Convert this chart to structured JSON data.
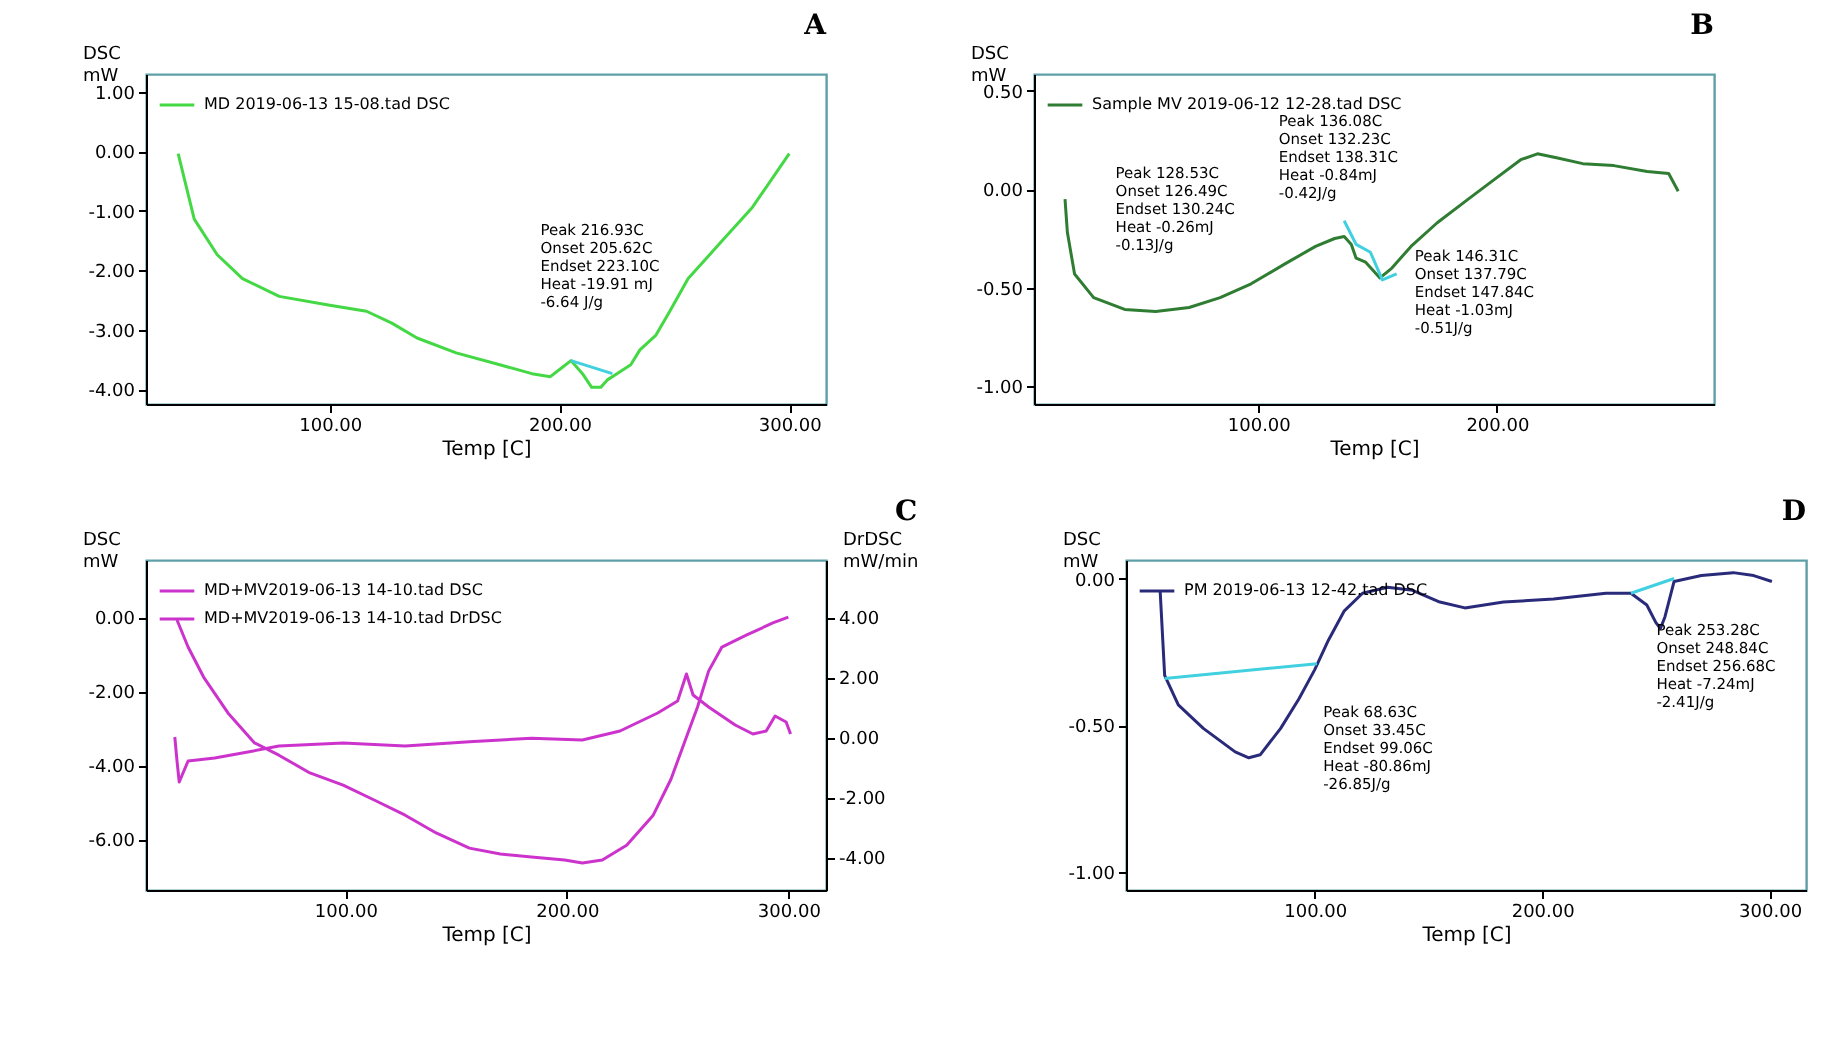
{
  "chart_data": [
    {
      "type": "line",
      "title": "A",
      "xlabel": "Temp [C]",
      "ylabel": "DSC\nmW",
      "xlim": [
        20,
        316
      ],
      "ylim": [
        -4.25,
        1.3
      ],
      "xticks": [
        {
          "value": 100,
          "label": "100.00"
        },
        {
          "value": 200,
          "label": "200.00"
        },
        {
          "value": 300,
          "label": "300.00"
        }
      ],
      "yticks": [
        {
          "value": 1,
          "label": "1.00"
        },
        {
          "value": 0,
          "label": "0.00"
        },
        {
          "value": -1,
          "label": "-1.00"
        },
        {
          "value": -2,
          "label": "-2.00"
        },
        {
          "value": -3,
          "label": "-3.00"
        },
        {
          "value": -4,
          "label": "-4.00"
        }
      ],
      "grid": false,
      "legend": "top left",
      "annotations": [
        "Peak 216.93C\nOnset 205.62C\nEndset 223.10C\nHeat -19.91 mJ\n-6.64 J/g"
      ],
      "series": [
        {
          "name": "MD 2019-06-13 15-08.tad  DSC",
          "color": "#44d844",
          "x": [
            34,
            41,
            51,
            62,
            78,
            100,
            116,
            127,
            138,
            155,
            174,
            188,
            196,
            201,
            205,
            210,
            214,
            218,
            221,
            225,
            231,
            235,
            242,
            248,
            256,
            270,
            284,
            300
          ],
          "values": [
            -0.04,
            -1.14,
            -1.74,
            -2.14,
            -2.44,
            -2.59,
            -2.69,
            -2.89,
            -3.14,
            -3.39,
            -3.59,
            -3.74,
            -3.79,
            -3.64,
            -3.52,
            -3.74,
            -3.97,
            -3.97,
            -3.84,
            -3.74,
            -3.59,
            -3.34,
            -3.09,
            -2.69,
            -2.14,
            -1.54,
            -0.94,
            -0.04
          ]
        },
        {
          "color": "#40d0e0",
          "x": [
            205,
            223
          ],
          "values": [
            -3.52,
            -3.74
          ]
        }
      ]
    },
    {
      "type": "line",
      "title": "B",
      "xlabel": "Temp [C]",
      "ylabel": "DSC\nmW",
      "xlim": [
        6,
        291
      ],
      "ylim": [
        -1.09,
        0.585
      ],
      "xticks": [
        {
          "value": 100,
          "label": "100.00"
        },
        {
          "value": 200,
          "label": "200.00"
        }
      ],
      "yticks": [
        {
          "value": 0.5,
          "label": "0.50"
        },
        {
          "value": 0,
          "label": "0.00"
        },
        {
          "value": -0.5,
          "label": "-0.50"
        },
        {
          "value": -1,
          "label": "-1.00"
        }
      ],
      "grid": false,
      "legend": "top left",
      "annotations": [
        "Peak 128.53C\nOnset 126.49C\nEndset 130.24C\nHeat -0.26mJ\n-0.13J/g",
        "Peak 136.08C\nOnset 132.23C\nEndset 138.31C\nHeat -0.84mJ\n-0.42J/g",
        "Peak 146.31C\nOnset 137.79C\nEndset 147.84C\nHeat -1.03mJ\n-0.51J/g"
      ],
      "series": [
        {
          "name": "Sample MV 2019-06-12 12-28.tad  DSC",
          "color": "#2e7d32",
          "x": [
            19,
            20,
            23,
            31,
            44,
            57,
            71,
            84,
            97,
            111,
            124,
            132,
            136,
            139,
            141,
            145,
            151,
            156,
            164,
            175,
            188,
            199,
            210,
            217,
            225,
            236,
            249,
            263,
            272,
            276
          ],
          "values": [
            -0.05,
            -0.22,
            -0.43,
            -0.55,
            -0.61,
            -0.62,
            -0.6,
            -0.55,
            -0.48,
            -0.38,
            -0.29,
            -0.25,
            -0.24,
            -0.28,
            -0.35,
            -0.37,
            -0.45,
            -0.4,
            -0.29,
            -0.17,
            -0.05,
            0.05,
            0.15,
            0.18,
            0.16,
            0.13,
            0.12,
            0.09,
            0.08,
            -0.01
          ]
        },
        {
          "color": "#40d0e0",
          "x": [
            136,
            141,
            147,
            152,
            158
          ],
          "values": [
            -0.16,
            -0.28,
            -0.32,
            -0.46,
            -0.43
          ]
        }
      ]
    },
    {
      "type": "line",
      "title": "C",
      "xlabel": "Temp [C]",
      "ylabel": "DSC\nmW",
      "y2label": "DrDSC\nmW/min",
      "xlim": [
        10,
        317
      ],
      "ylim": [
        -7.37,
        1.54
      ],
      "y2lim": [
        -5.1,
        5.9
      ],
      "xticks": [
        {
          "value": 100,
          "label": "100.00"
        },
        {
          "value": 200,
          "label": "200.00"
        },
        {
          "value": 300,
          "label": "300.00"
        }
      ],
      "yticks": [
        {
          "value": 0,
          "label": "0.00"
        },
        {
          "value": -2,
          "label": "-2.00"
        },
        {
          "value": -4,
          "label": "-4.00"
        },
        {
          "value": -6,
          "label": "-6.00"
        }
      ],
      "y2ticks": [
        {
          "value": 4,
          "label": "4.00"
        },
        {
          "value": 2,
          "label": "2.00"
        },
        {
          "value": 0,
          "label": "0.00"
        },
        {
          "value": -2,
          "label": "-2.00"
        },
        {
          "value": -4,
          "label": "-4.00"
        }
      ],
      "grid": false,
      "legend": "top left",
      "series": [
        {
          "name": "MD+MV2019-06-13 14-10.tad  DSC",
          "color": "#cc33cc",
          "x": [
            24,
            29,
            36,
            47,
            59,
            70,
            84,
            99,
            113,
            127,
            141,
            156,
            170,
            184,
            199,
            207,
            216,
            227,
            239,
            247,
            253,
            259,
            264,
            270,
            281,
            293,
            300
          ],
          "values": [
            -0.08,
            -0.81,
            -1.62,
            -2.59,
            -3.4,
            -3.73,
            -4.21,
            -4.54,
            -4.94,
            -5.35,
            -5.83,
            -6.24,
            -6.4,
            -6.48,
            -6.56,
            -6.64,
            -6.56,
            -6.16,
            -5.35,
            -4.38,
            -3.4,
            -2.43,
            -1.46,
            -0.81,
            -0.49,
            -0.16,
            0
          ]
        },
        {
          "name": "MD+MV2019-06-13 14-10.tad  DrDSC",
          "color": "#cc33cc",
          "axis": "y2",
          "x": [
            23,
            24,
            25,
            29,
            41,
            56,
            70,
            99,
            127,
            156,
            184,
            207,
            224,
            241,
            250,
            254,
            257,
            264,
            276,
            284,
            290,
            294,
            299,
            301
          ],
          "values": [
            0.0,
            -0.8,
            -1.5,
            -0.8,
            -0.7,
            -0.5,
            -0.3,
            -0.2,
            -0.3,
            -0.16,
            -0.04,
            -0.1,
            0.2,
            0.8,
            1.2,
            2.1,
            1.4,
            1.0,
            0.4,
            0.1,
            0.2,
            0.7,
            0.5,
            0.1
          ]
        }
      ]
    },
    {
      "type": "line",
      "title": "D",
      "xlabel": "Temp [C]",
      "ylabel": "DSC\nmW",
      "xlim": [
        17,
        316
      ],
      "ylim": [
        -1.06,
        0.063
      ],
      "xticks": [
        {
          "value": 100,
          "label": "100.00"
        },
        {
          "value": 200,
          "label": "200.00"
        },
        {
          "value": 300,
          "label": "300.00"
        }
      ],
      "yticks": [
        {
          "value": 0,
          "label": "0.00"
        },
        {
          "value": -0.5,
          "label": "-0.50"
        },
        {
          "value": -1,
          "label": "-1.00"
        }
      ],
      "grid": false,
      "legend": "top left",
      "annotations": [
        "Peak 68.63C\nOnset 33.45C\nEndset 99.06C\nHeat -80.86mJ\n-26.85J/g",
        "Peak 253.28C\nOnset 248.84C\nEndset 256.68C\nHeat -7.24mJ\n-2.41J/g"
      ],
      "series": [
        {
          "name": "PM 2019-06-13 12-42.tad  DSC",
          "color": "#2a2a7a",
          "x": [
            32,
            34,
            40,
            51,
            65,
            71,
            76,
            85,
            93,
            100,
            106,
            113,
            121,
            132,
            143,
            155,
            166,
            183,
            205,
            228,
            239,
            246,
            250,
            252,
            254,
            258,
            270,
            284,
            293,
            301
          ],
          "values": [
            -0.04,
            -0.33,
            -0.43,
            -0.51,
            -0.59,
            -0.61,
            -0.6,
            -0.51,
            -0.41,
            -0.31,
            -0.21,
            -0.11,
            -0.05,
            -0.03,
            -0.04,
            -0.08,
            -0.1,
            -0.08,
            -0.07,
            -0.05,
            -0.05,
            -0.09,
            -0.15,
            -0.17,
            -0.13,
            -0.01,
            0.01,
            0.02,
            0.01,
            -0.01
          ]
        },
        {
          "color": "#40d0e0",
          "x": [
            34,
            101
          ],
          "values": [
            -0.34,
            -0.29
          ]
        },
        {
          "color": "#40d0e0",
          "x": [
            239,
            258
          ],
          "values": [
            -0.05,
            0.0
          ]
        }
      ]
    }
  ]
}
